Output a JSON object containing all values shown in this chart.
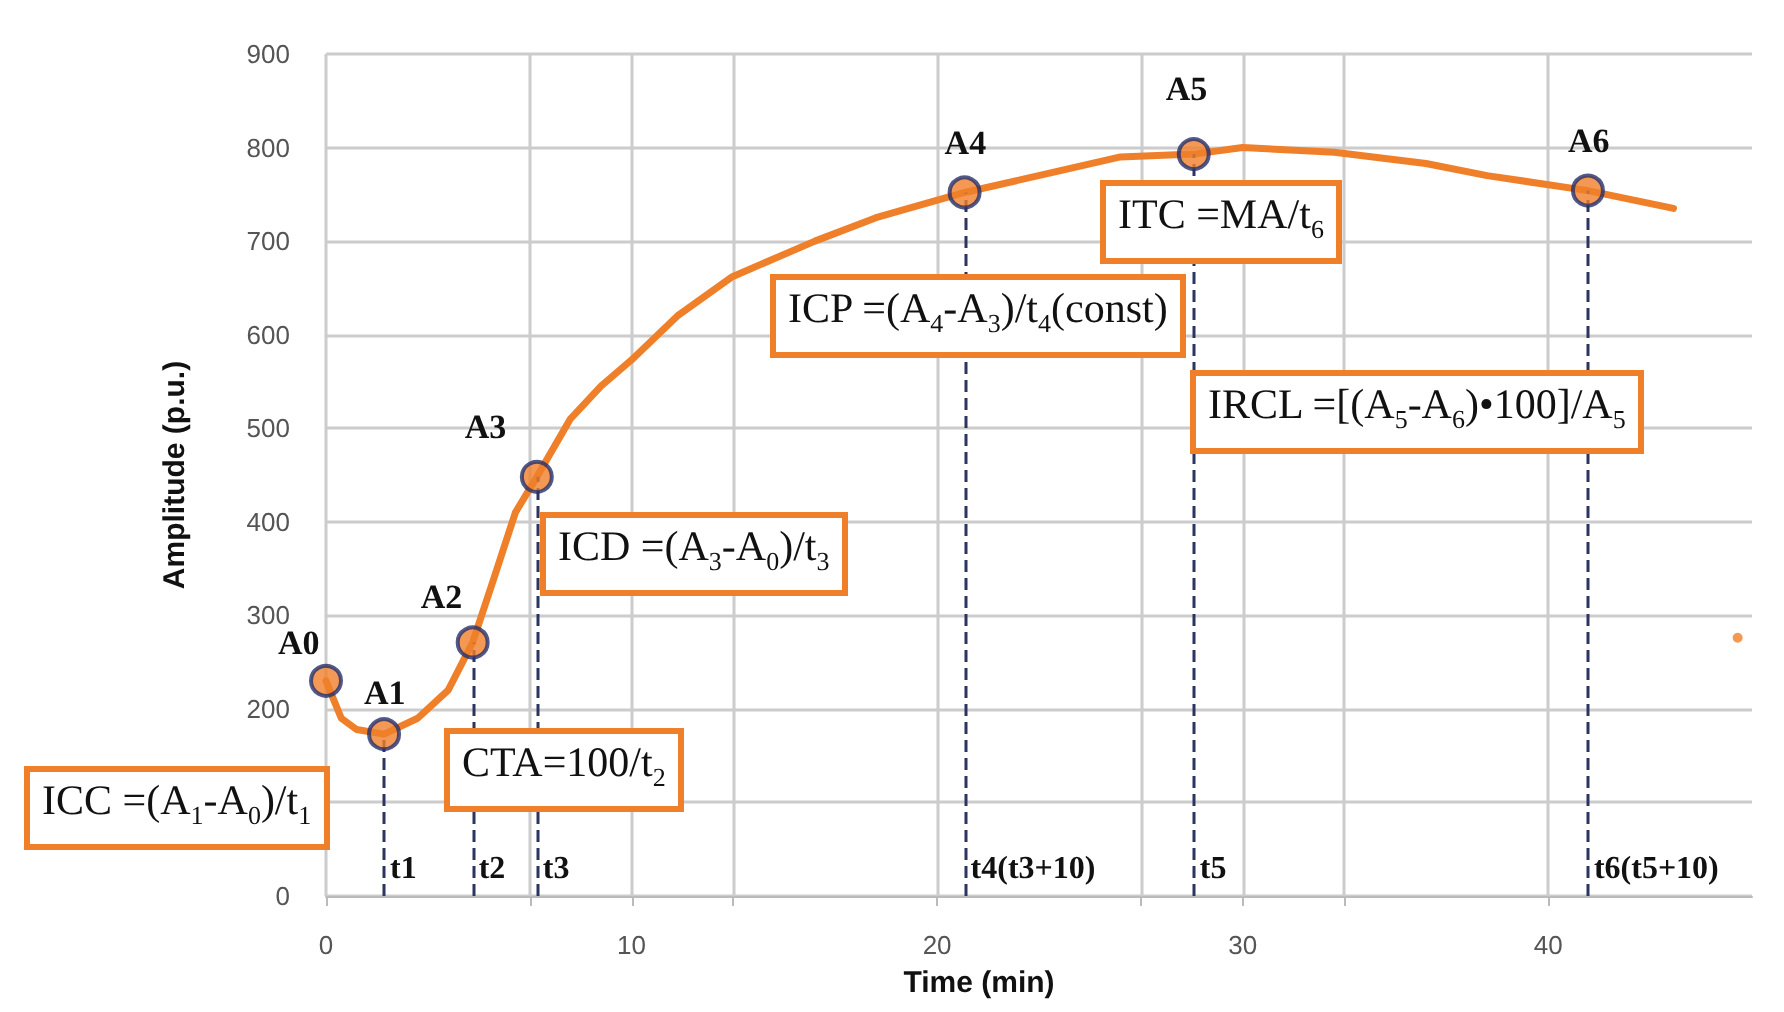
{
  "chart_data": {
    "type": "line",
    "xlabel": "Time (min)",
    "ylabel": "Amplitude (p.u.)",
    "xlim": [
      0,
      46.67
    ],
    "ylim": [
      0,
      900
    ],
    "xticks": [
      0,
      {
        "value": 6.667,
        "label": null
      },
      10,
      {
        "value": 13.33,
        "label": null
      },
      20,
      {
        "value": 26.67,
        "label": null
      },
      30,
      {
        "value": 33.33,
        "label": null
      },
      40
    ],
    "yticks": [
      0,
      {
        "value": 100,
        "label": null
      },
      200,
      300,
      400,
      500,
      600,
      700,
      800,
      900
    ],
    "grid": true,
    "series": [
      {
        "marker": "none",
        "color": "#f07f2a",
        "x": [
          0,
          0.5,
          1,
          1.9,
          3,
          4,
          4.8,
          5.5,
          6.2,
          6.9,
          8,
          9,
          10,
          11.5,
          13.3,
          16,
          18,
          20.9,
          24,
          26,
          28.4,
          30,
          33,
          36,
          38,
          41.3,
          44.1
        ],
        "values": [
          230,
          190,
          178,
          173,
          190,
          220,
          271,
          340,
          410,
          448,
          510,
          545,
          573,
          620,
          662,
          700,
          725,
          752,
          775,
          790,
          793,
          800,
          795,
          783,
          770,
          754,
          735
        ]
      },
      {
        "type": "scatter",
        "marker": "circle",
        "color": "#f07f2a",
        "x": [
          0,
          1.9,
          4.8,
          6.9,
          20.9,
          28.4,
          41.3
        ],
        "values": [
          230,
          173,
          271,
          448,
          752,
          793,
          754
        ]
      },
      {
        "type": "scatter",
        "marker": "circle",
        "color": "#f07f2a",
        "x": [
          46.2
        ],
        "values": [
          276
        ]
      }
    ],
    "ref_lines": [
      {
        "axis": "x",
        "value": 1.9,
        "label": "t1"
      },
      {
        "axis": "x",
        "value": 4.8,
        "label": "t2"
      },
      {
        "axis": "x",
        "value": 6.9,
        "label": "t3"
      },
      {
        "axis": "x",
        "value": 20.9,
        "label": "t4(t3+10)"
      },
      {
        "axis": "x",
        "value": 28.4,
        "label": "t5"
      },
      {
        "axis": "x",
        "value": 41.3,
        "label": "t6(t5+10)"
      }
    ],
    "annotations": [
      {
        "text": "A0",
        "x": 0,
        "y": 230
      },
      {
        "text": "A1",
        "x": 1.9,
        "y": 173
      },
      {
        "text": "A2",
        "x": 4.8,
        "y": 271
      },
      {
        "text": "A3",
        "x": 6.9,
        "y": 448
      },
      {
        "text": "A4",
        "x": 20.9,
        "y": 752
      },
      {
        "text": "A5",
        "x": 28.4,
        "y": 793
      },
      {
        "text": "A6",
        "x": 41.3,
        "y": 754
      },
      "ICC =(A$_{1}$-A$_{0}$)/t$_{1}$",
      "CTA=100/t$_{2}$",
      "ICD =(A$_{3}$-A$_{0}$)/t$_{3}$",
      "ICP =(A$_{4}$-A$_{3}$)/t$_{4}$(const)",
      "ITC =MA/t$_{6}$",
      "IRCL =[(A$_{5}$-A$_{6}$)•100]/A$_{5}$"
    ]
  }
}
